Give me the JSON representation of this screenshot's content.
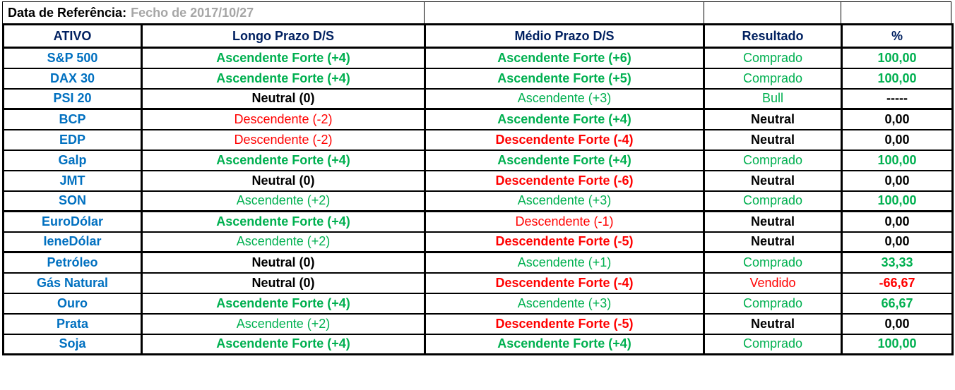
{
  "reference": {
    "label": "Data de Referência:",
    "value": "Fecho de 2017/10/27"
  },
  "colors": {
    "blue": "#0070C0",
    "navy": "#002060",
    "green": "#00B050",
    "red": "#FF0000",
    "gray": "#A6A6A6",
    "border": "#000000"
  },
  "table": {
    "headers": [
      "ATIVO",
      "Longo Prazo D/S",
      "Médio Prazo D/S",
      "Resultado",
      "%"
    ],
    "rows": [
      {
        "ativo": "S&P 500",
        "longo": {
          "t": "Ascendente Forte (+4)",
          "s": "gb"
        },
        "medio": {
          "t": "Ascendente Forte (+6)",
          "s": "gb"
        },
        "resultado": {
          "t": "Comprado",
          "s": "g"
        },
        "pct": {
          "t": "100,00",
          "s": "g"
        },
        "group_end": false
      },
      {
        "ativo": "DAX 30",
        "longo": {
          "t": "Ascendente Forte (+4)",
          "s": "gb"
        },
        "medio": {
          "t": "Ascendente Forte (+5)",
          "s": "gb"
        },
        "resultado": {
          "t": "Comprado",
          "s": "g"
        },
        "pct": {
          "t": "100,00",
          "s": "g"
        },
        "group_end": false
      },
      {
        "ativo": "PSI 20",
        "longo": {
          "t": "Neutral (0)",
          "s": "k"
        },
        "medio": {
          "t": "Ascendente (+3)",
          "s": "g"
        },
        "resultado": {
          "t": "Bull",
          "s": "g"
        },
        "pct": {
          "t": "-----",
          "s": "k"
        },
        "group_end": true
      },
      {
        "ativo": "BCP",
        "longo": {
          "t": "Descendente (-2)",
          "s": "r"
        },
        "medio": {
          "t": "Ascendente Forte (+4)",
          "s": "gb"
        },
        "resultado": {
          "t": "Neutral",
          "s": "k"
        },
        "pct": {
          "t": "0,00",
          "s": "k"
        },
        "group_end": false
      },
      {
        "ativo": "EDP",
        "longo": {
          "t": "Descendente (-2)",
          "s": "r"
        },
        "medio": {
          "t": "Descendente Forte (-4)",
          "s": "rb"
        },
        "resultado": {
          "t": "Neutral",
          "s": "k"
        },
        "pct": {
          "t": "0,00",
          "s": "k"
        },
        "group_end": false
      },
      {
        "ativo": "Galp",
        "longo": {
          "t": "Ascendente Forte (+4)",
          "s": "gb"
        },
        "medio": {
          "t": "Ascendente Forte (+4)",
          "s": "gb"
        },
        "resultado": {
          "t": "Comprado",
          "s": "g"
        },
        "pct": {
          "t": "100,00",
          "s": "g"
        },
        "group_end": false
      },
      {
        "ativo": "JMT",
        "longo": {
          "t": "Neutral (0)",
          "s": "k"
        },
        "medio": {
          "t": "Descendente Forte (-6)",
          "s": "rb"
        },
        "resultado": {
          "t": "Neutral",
          "s": "k"
        },
        "pct": {
          "t": "0,00",
          "s": "k"
        },
        "group_end": false
      },
      {
        "ativo": "SON",
        "longo": {
          "t": "Ascendente (+2)",
          "s": "g"
        },
        "medio": {
          "t": "Ascendente (+3)",
          "s": "g"
        },
        "resultado": {
          "t": "Comprado",
          "s": "g"
        },
        "pct": {
          "t": "100,00",
          "s": "g"
        },
        "group_end": true
      },
      {
        "ativo": "EuroDólar",
        "longo": {
          "t": "Ascendente Forte (+4)",
          "s": "gb"
        },
        "medio": {
          "t": "Descendente (-1)",
          "s": "r"
        },
        "resultado": {
          "t": "Neutral",
          "s": "k"
        },
        "pct": {
          "t": "0,00",
          "s": "k"
        },
        "group_end": false
      },
      {
        "ativo": "IeneDólar",
        "longo": {
          "t": "Ascendente (+2)",
          "s": "g"
        },
        "medio": {
          "t": "Descendente Forte (-5)",
          "s": "rb"
        },
        "resultado": {
          "t": "Neutral",
          "s": "k"
        },
        "pct": {
          "t": "0,00",
          "s": "k"
        },
        "group_end": true
      },
      {
        "ativo": "Petróleo",
        "longo": {
          "t": "Neutral (0)",
          "s": "k"
        },
        "medio": {
          "t": "Ascendente (+1)",
          "s": "g"
        },
        "resultado": {
          "t": "Comprado",
          "s": "g"
        },
        "pct": {
          "t": "33,33",
          "s": "g"
        },
        "group_end": false
      },
      {
        "ativo": "Gás Natural",
        "longo": {
          "t": "Neutral (0)",
          "s": "k"
        },
        "medio": {
          "t": "Descendente Forte (-4)",
          "s": "rb"
        },
        "resultado": {
          "t": "Vendido",
          "s": "r"
        },
        "pct": {
          "t": "-66,67",
          "s": "r"
        },
        "group_end": false
      },
      {
        "ativo": "Ouro",
        "longo": {
          "t": "Ascendente Forte (+4)",
          "s": "gb"
        },
        "medio": {
          "t": "Ascendente (+3)",
          "s": "g"
        },
        "resultado": {
          "t": "Comprado",
          "s": "g"
        },
        "pct": {
          "t": "66,67",
          "s": "g"
        },
        "group_end": false
      },
      {
        "ativo": "Prata",
        "longo": {
          "t": "Ascendente (+2)",
          "s": "g"
        },
        "medio": {
          "t": "Descendente Forte (-5)",
          "s": "rb"
        },
        "resultado": {
          "t": "Neutral",
          "s": "k"
        },
        "pct": {
          "t": "0,00",
          "s": "k"
        },
        "group_end": false
      },
      {
        "ativo": "Soja",
        "longo": {
          "t": "Ascendente Forte (+4)",
          "s": "gb"
        },
        "medio": {
          "t": "Ascendente Forte (+4)",
          "s": "gb"
        },
        "resultado": {
          "t": "Comprado",
          "s": "g"
        },
        "pct": {
          "t": "100,00",
          "s": "g"
        },
        "group_end": false
      }
    ]
  }
}
